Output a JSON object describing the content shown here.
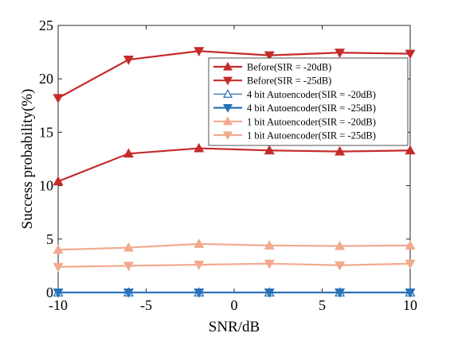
{
  "chart_data": {
    "type": "line",
    "xlabel": "SNR/dB",
    "ylabel": "Success probability(%)",
    "xlim": [
      -10,
      10
    ],
    "ylim": [
      0,
      25
    ],
    "xticks": [
      "-10",
      "-5",
      "0",
      "5",
      "10"
    ],
    "yticks": [
      "0",
      "5",
      "10",
      "15",
      "20",
      "25"
    ],
    "grid": false,
    "legend_position": "top-right",
    "x": [
      -10,
      -6,
      -2,
      2,
      6,
      10
    ],
    "series": [
      {
        "name": "Before(SIR = -20dB)",
        "values": [
          10.4,
          13.0,
          13.5,
          13.3,
          13.2,
          13.3
        ],
        "color": "#c52a2a",
        "marker": "triangle-up",
        "filled": true,
        "width": 2.2
      },
      {
        "name": "Before(SIR = -25dB)",
        "values": [
          18.2,
          21.8,
          22.6,
          22.2,
          22.45,
          22.35
        ],
        "color": "#c52a2a",
        "marker": "triangle-down",
        "filled": true,
        "width": 2.2
      },
      {
        "name": "4 bit Autoencoder(SIR = -20dB)",
        "values": [
          0,
          0,
          0,
          0,
          0,
          0
        ],
        "color": "#2a72b8",
        "marker": "triangle-up",
        "filled": false,
        "width": 1.2
      },
      {
        "name": "4 bit Autoencoder(SIR = -25dB)",
        "values": [
          0,
          0,
          0,
          0,
          0,
          0
        ],
        "color": "#2a72b8",
        "marker": "triangle-down",
        "filled": true,
        "width": 2.2
      },
      {
        "name": "1 bit Autoencoder(SIR = -20dB)",
        "values": [
          4.0,
          4.2,
          4.55,
          4.4,
          4.35,
          4.4
        ],
        "color": "#f2a98e",
        "marker": "triangle-up",
        "filled": true,
        "width": 2.2
      },
      {
        "name": "1 bit Autoencoder(SIR = -25dB)",
        "values": [
          2.4,
          2.5,
          2.6,
          2.7,
          2.55,
          2.7
        ],
        "color": "#f2a98e",
        "marker": "triangle-down",
        "filled": true,
        "width": 2.2
      }
    ]
  }
}
